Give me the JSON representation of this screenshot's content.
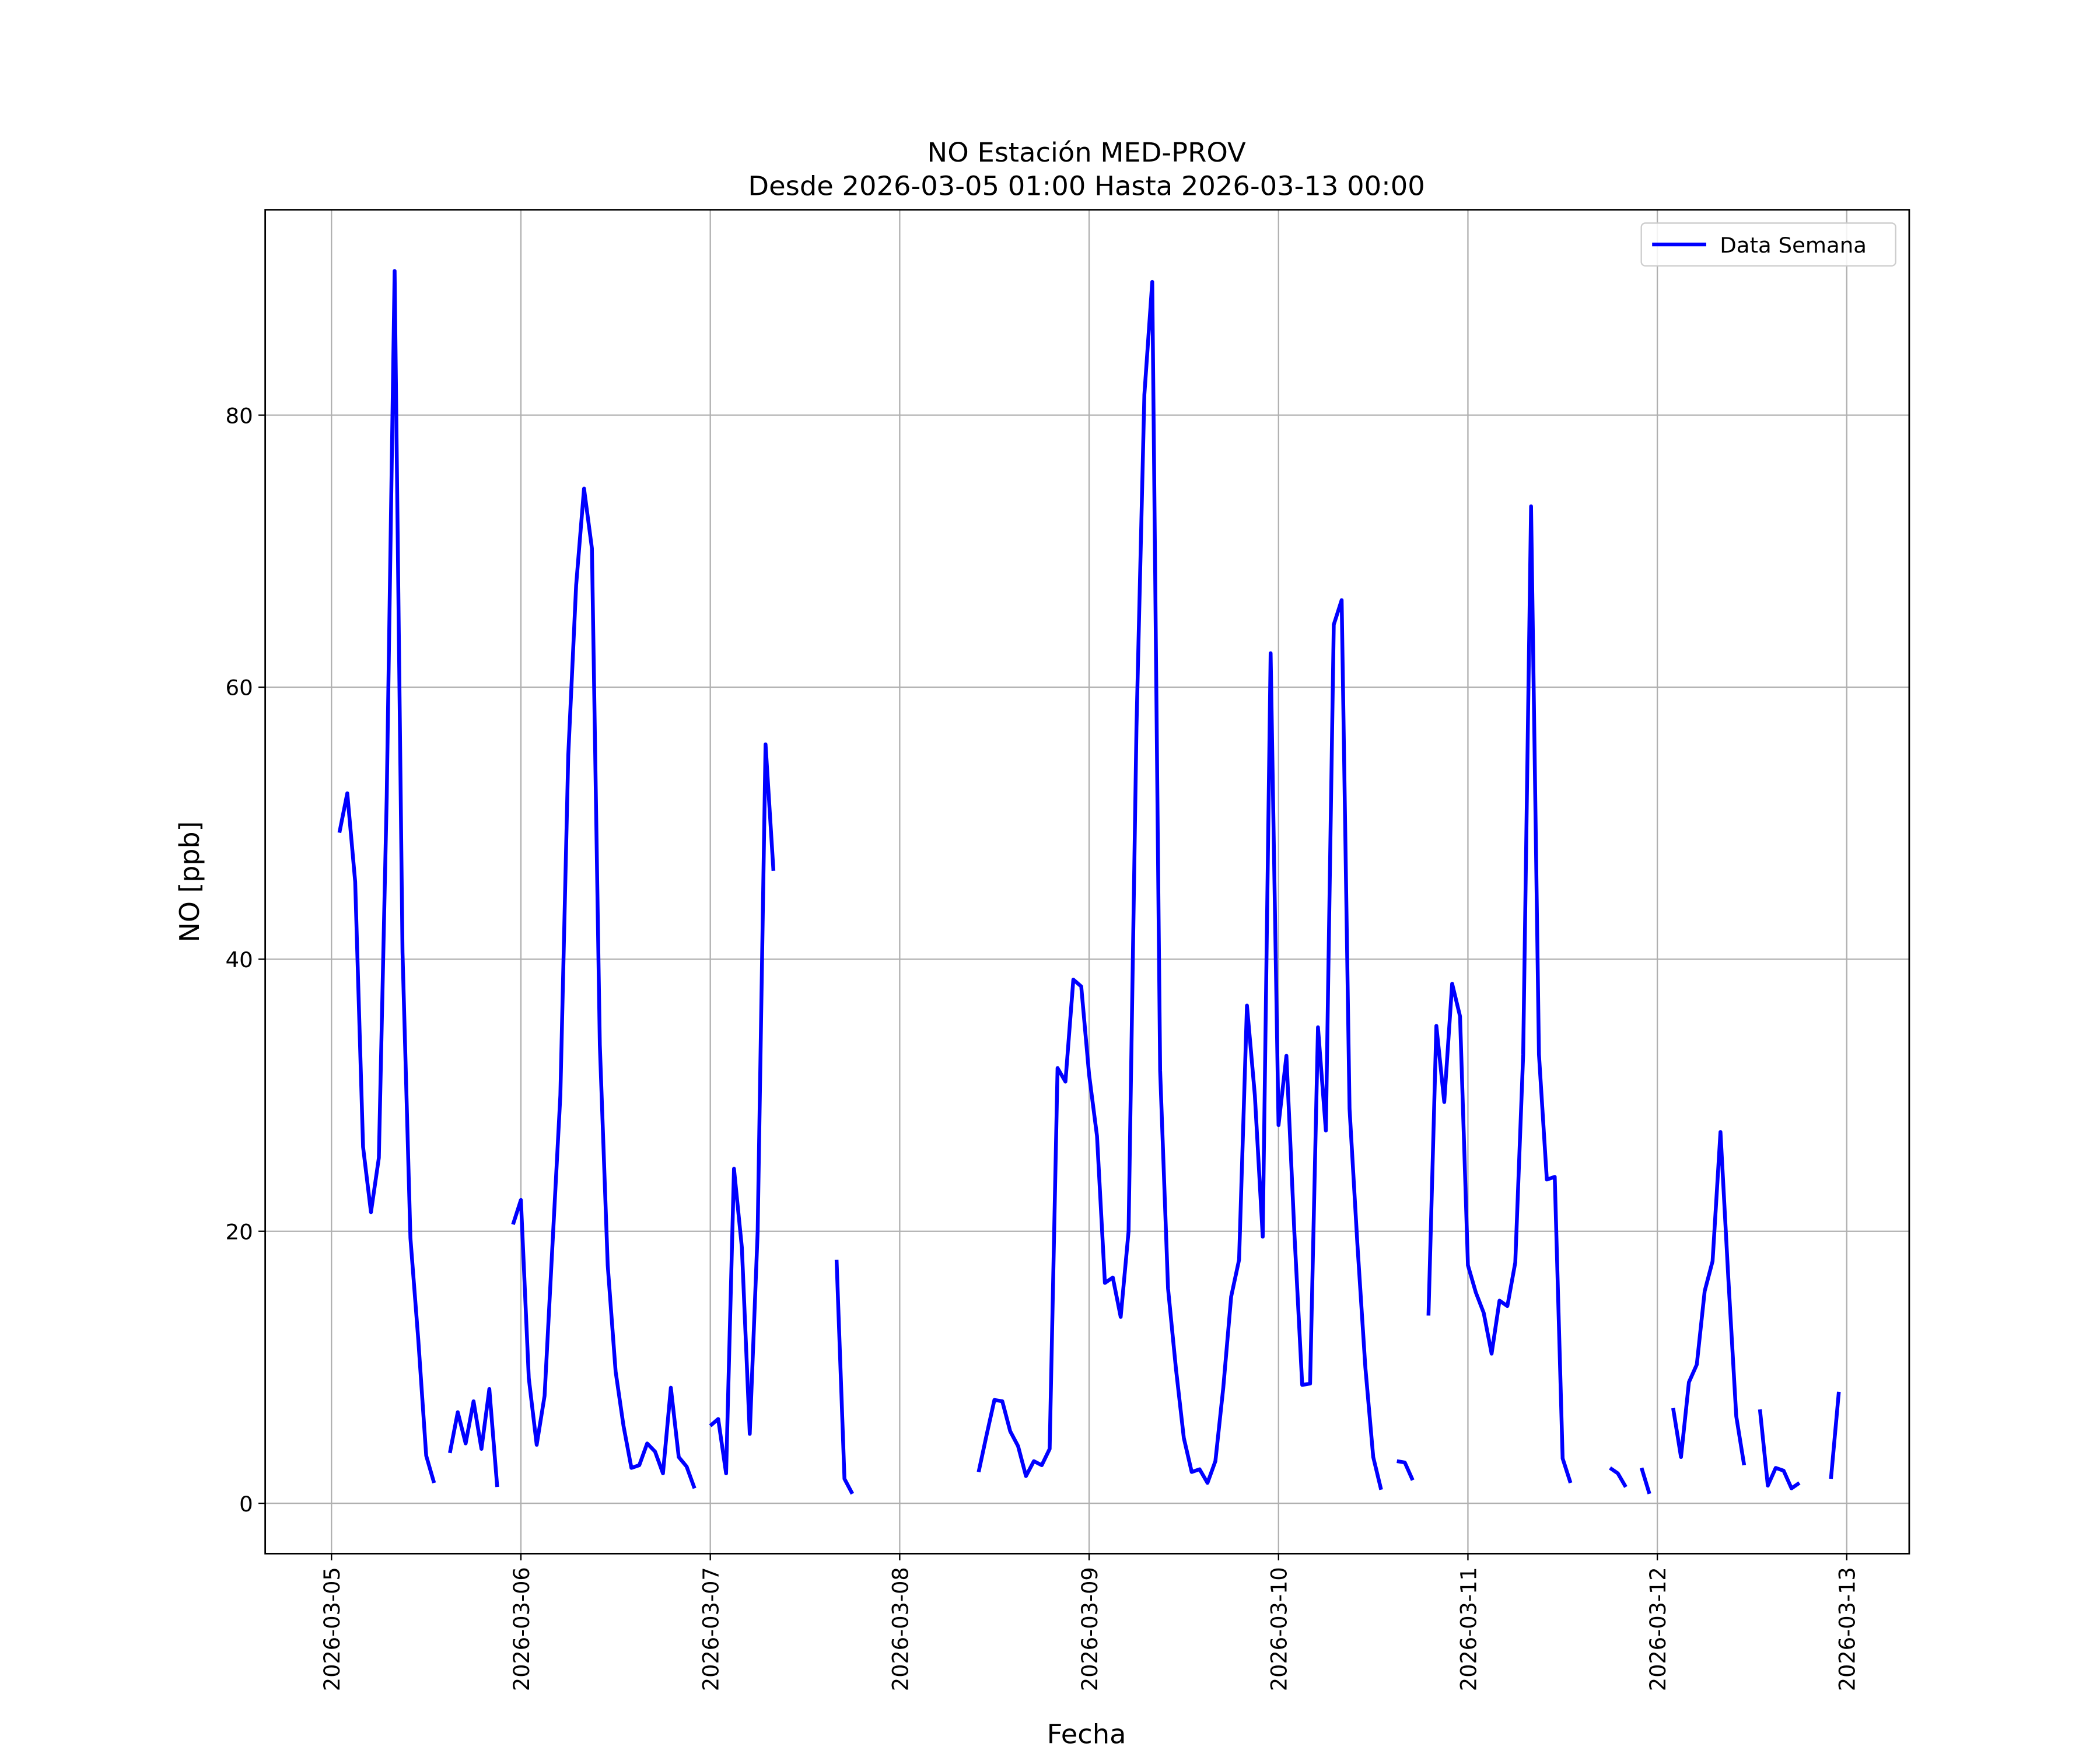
{
  "chart_data": {
    "type": "line",
    "title": "NO Estación MED-PROV",
    "subtitle": "Desde 2026-03-05 01:00 Hasta 2026-03-13 00:00",
    "xlabel": "Fecha",
    "ylabel": "NO [ppb]",
    "x": [
      "2026-03-05 01:00",
      "2026-03-05 02:00",
      "2026-03-05 03:00",
      "2026-03-05 04:00",
      "2026-03-05 05:00",
      "2026-03-05 06:00",
      "2026-03-05 07:00",
      "2026-03-05 08:00",
      "2026-03-05 09:00",
      "2026-03-05 10:00",
      "2026-03-05 11:00",
      "2026-03-05 12:00",
      "2026-03-05 13:00",
      "2026-03-05 14:00",
      "2026-03-05 15:00",
      "2026-03-05 16:00",
      "2026-03-05 17:00",
      "2026-03-05 18:00",
      "2026-03-05 19:00",
      "2026-03-05 20:00",
      "2026-03-05 21:00",
      "2026-03-05 22:00",
      "2026-03-05 23:00",
      "2026-03-06 00:00",
      "2026-03-06 01:00",
      "2026-03-06 02:00",
      "2026-03-06 03:00",
      "2026-03-06 04:00",
      "2026-03-06 05:00",
      "2026-03-06 06:00",
      "2026-03-06 07:00",
      "2026-03-06 08:00",
      "2026-03-06 09:00",
      "2026-03-06 10:00",
      "2026-03-06 11:00",
      "2026-03-06 12:00",
      "2026-03-06 13:00",
      "2026-03-06 14:00",
      "2026-03-06 15:00",
      "2026-03-06 16:00",
      "2026-03-06 17:00",
      "2026-03-06 18:00",
      "2026-03-06 19:00",
      "2026-03-06 20:00",
      "2026-03-06 21:00",
      "2026-03-06 22:00",
      "2026-03-06 23:00",
      "2026-03-07 00:00",
      "2026-03-07 01:00",
      "2026-03-07 02:00",
      "2026-03-07 03:00",
      "2026-03-07 04:00",
      "2026-03-07 05:00",
      "2026-03-07 06:00",
      "2026-03-07 07:00",
      "2026-03-07 08:00",
      "2026-03-07 09:00",
      "2026-03-07 10:00",
      "2026-03-07 11:00",
      "2026-03-07 12:00",
      "2026-03-07 13:00",
      "2026-03-07 14:00",
      "2026-03-07 15:00",
      "2026-03-07 16:00",
      "2026-03-07 17:00",
      "2026-03-07 18:00",
      "2026-03-07 19:00",
      "2026-03-07 20:00",
      "2026-03-07 21:00",
      "2026-03-07 22:00",
      "2026-03-07 23:00",
      "2026-03-08 00:00",
      "2026-03-08 01:00",
      "2026-03-08 02:00",
      "2026-03-08 03:00",
      "2026-03-08 04:00",
      "2026-03-08 05:00",
      "2026-03-08 06:00",
      "2026-03-08 07:00",
      "2026-03-08 08:00",
      "2026-03-08 09:00",
      "2026-03-08 10:00",
      "2026-03-08 11:00",
      "2026-03-08 12:00",
      "2026-03-08 13:00",
      "2026-03-08 14:00",
      "2026-03-08 15:00",
      "2026-03-08 16:00",
      "2026-03-08 17:00",
      "2026-03-08 18:00",
      "2026-03-08 19:00",
      "2026-03-08 20:00",
      "2026-03-08 21:00",
      "2026-03-08 22:00",
      "2026-03-08 23:00",
      "2026-03-09 00:00",
      "2026-03-09 01:00",
      "2026-03-09 02:00",
      "2026-03-09 03:00",
      "2026-03-09 04:00",
      "2026-03-09 05:00",
      "2026-03-09 06:00",
      "2026-03-09 07:00",
      "2026-03-09 08:00",
      "2026-03-09 09:00",
      "2026-03-09 10:00",
      "2026-03-09 11:00",
      "2026-03-09 12:00",
      "2026-03-09 13:00",
      "2026-03-09 14:00",
      "2026-03-09 15:00",
      "2026-03-09 16:00",
      "2026-03-09 17:00",
      "2026-03-09 18:00",
      "2026-03-09 19:00",
      "2026-03-09 20:00",
      "2026-03-09 21:00",
      "2026-03-09 22:00",
      "2026-03-09 23:00",
      "2026-03-10 00:00",
      "2026-03-10 01:00",
      "2026-03-10 02:00",
      "2026-03-10 03:00",
      "2026-03-10 04:00",
      "2026-03-10 05:00",
      "2026-03-10 06:00",
      "2026-03-10 07:00",
      "2026-03-10 08:00",
      "2026-03-10 09:00",
      "2026-03-10 10:00",
      "2026-03-10 11:00",
      "2026-03-10 12:00",
      "2026-03-10 13:00",
      "2026-03-10 14:00",
      "2026-03-10 15:00",
      "2026-03-10 16:00",
      "2026-03-10 17:00",
      "2026-03-10 18:00",
      "2026-03-10 19:00",
      "2026-03-10 20:00",
      "2026-03-10 21:00",
      "2026-03-10 22:00",
      "2026-03-10 23:00",
      "2026-03-11 00:00",
      "2026-03-11 01:00",
      "2026-03-11 02:00",
      "2026-03-11 03:00",
      "2026-03-11 04:00",
      "2026-03-11 05:00",
      "2026-03-11 06:00",
      "2026-03-11 07:00",
      "2026-03-11 08:00",
      "2026-03-11 09:00",
      "2026-03-11 10:00",
      "2026-03-11 11:00",
      "2026-03-11 12:00",
      "2026-03-11 13:00",
      "2026-03-11 14:00",
      "2026-03-11 15:00",
      "2026-03-11 16:00",
      "2026-03-11 17:00",
      "2026-03-11 18:00",
      "2026-03-11 19:00",
      "2026-03-11 20:00",
      "2026-03-11 21:00",
      "2026-03-11 22:00",
      "2026-03-11 23:00",
      "2026-03-12 00:00",
      "2026-03-12 01:00",
      "2026-03-12 02:00",
      "2026-03-12 03:00",
      "2026-03-12 04:00",
      "2026-03-12 05:00",
      "2026-03-12 06:00",
      "2026-03-12 07:00",
      "2026-03-12 08:00",
      "2026-03-12 09:00",
      "2026-03-12 10:00",
      "2026-03-12 11:00",
      "2026-03-12 12:00",
      "2026-03-12 13:00",
      "2026-03-12 14:00",
      "2026-03-12 15:00",
      "2026-03-12 16:00",
      "2026-03-12 17:00",
      "2026-03-12 18:00",
      "2026-03-12 19:00",
      "2026-03-12 20:00",
      "2026-03-12 21:00",
      "2026-03-12 22:00",
      "2026-03-12 23:00",
      "2026-03-13 00:00"
    ],
    "series": [
      {
        "name": "Data Semana",
        "color": "#0000ff",
        "values": [
          49.3,
          52.2,
          45.7,
          26.2,
          21.4,
          25.4,
          52,
          90.6,
          40.5,
          19.5,
          12,
          3.5,
          1.5,
          null,
          3.7,
          6.7,
          4.4,
          7.5,
          4,
          8.4,
          1.2,
          null,
          20.5,
          22.3,
          9.2,
          4.3,
          7.9,
          19,
          30,
          55,
          67.5,
          74.6,
          70.2,
          33.7,
          17.5,
          9.7,
          5.7,
          2.6,
          2.8,
          4.4,
          3.8,
          2.2,
          8.5,
          3.4,
          2.7,
          1.1,
          null,
          5.7,
          6.2,
          2.2,
          24.6,
          18.8,
          5.1,
          20,
          55.8,
          46.5,
          null,
          null,
          null,
          null,
          null,
          null,
          null,
          17.9,
          1.8,
          0.7,
          null,
          null,
          null,
          null,
          null,
          null,
          null,
          null,
          null,
          null,
          null,
          null,
          null,
          null,
          null,
          2.3,
          5,
          7.6,
          7.5,
          5.3,
          4.2,
          2,
          3.1,
          2.8,
          4,
          32,
          31,
          38.5,
          38,
          31.5,
          27,
          16.2,
          16.6,
          13.7,
          20,
          57,
          81.5,
          89.8,
          31.8,
          15.8,
          9.9,
          4.8,
          2.3,
          2.5,
          1.5,
          3.1,
          8.5,
          15.2,
          17.9,
          36.6,
          30,
          19.6,
          62.5,
          27.8,
          32.9,
          20,
          8.7,
          8.8,
          35,
          27.4,
          64.6,
          66.4,
          29,
          19,
          10,
          3.4,
          1,
          null,
          3.1,
          3,
          1.7,
          null,
          13.8,
          35.1,
          29.5,
          38.2,
          35.8,
          17.5,
          15.5,
          14,
          11,
          14.9,
          14.5,
          17.7,
          33,
          73.3,
          33,
          23.8,
          24,
          3.3,
          1.5,
          null,
          null,
          null,
          null,
          2.6,
          2.2,
          1.2,
          null,
          2.6,
          0.7,
          null,
          null,
          7,
          3.4,
          8.9,
          10.2,
          15.6,
          17.8,
          27.3,
          16.5,
          6.4,
          2.8,
          null,
          6.9,
          1.3,
          2.6,
          2.4,
          1.1,
          1.5,
          null,
          null,
          null,
          1.8,
          8.2,
          null
        ]
      }
    ],
    "xlim": [
      "2026-03-04 15:36",
      "2026-03-13 07:55"
    ],
    "xticks": [
      "2026-03-05",
      "2026-03-06",
      "2026-03-07",
      "2026-03-08",
      "2026-03-09",
      "2026-03-10",
      "2026-03-11",
      "2026-03-12",
      "2026-03-13"
    ],
    "ylim": [
      -3.7,
      95.1
    ],
    "yticks": [
      0,
      20,
      40,
      60,
      80
    ],
    "grid": true,
    "legend": "upper right"
  }
}
